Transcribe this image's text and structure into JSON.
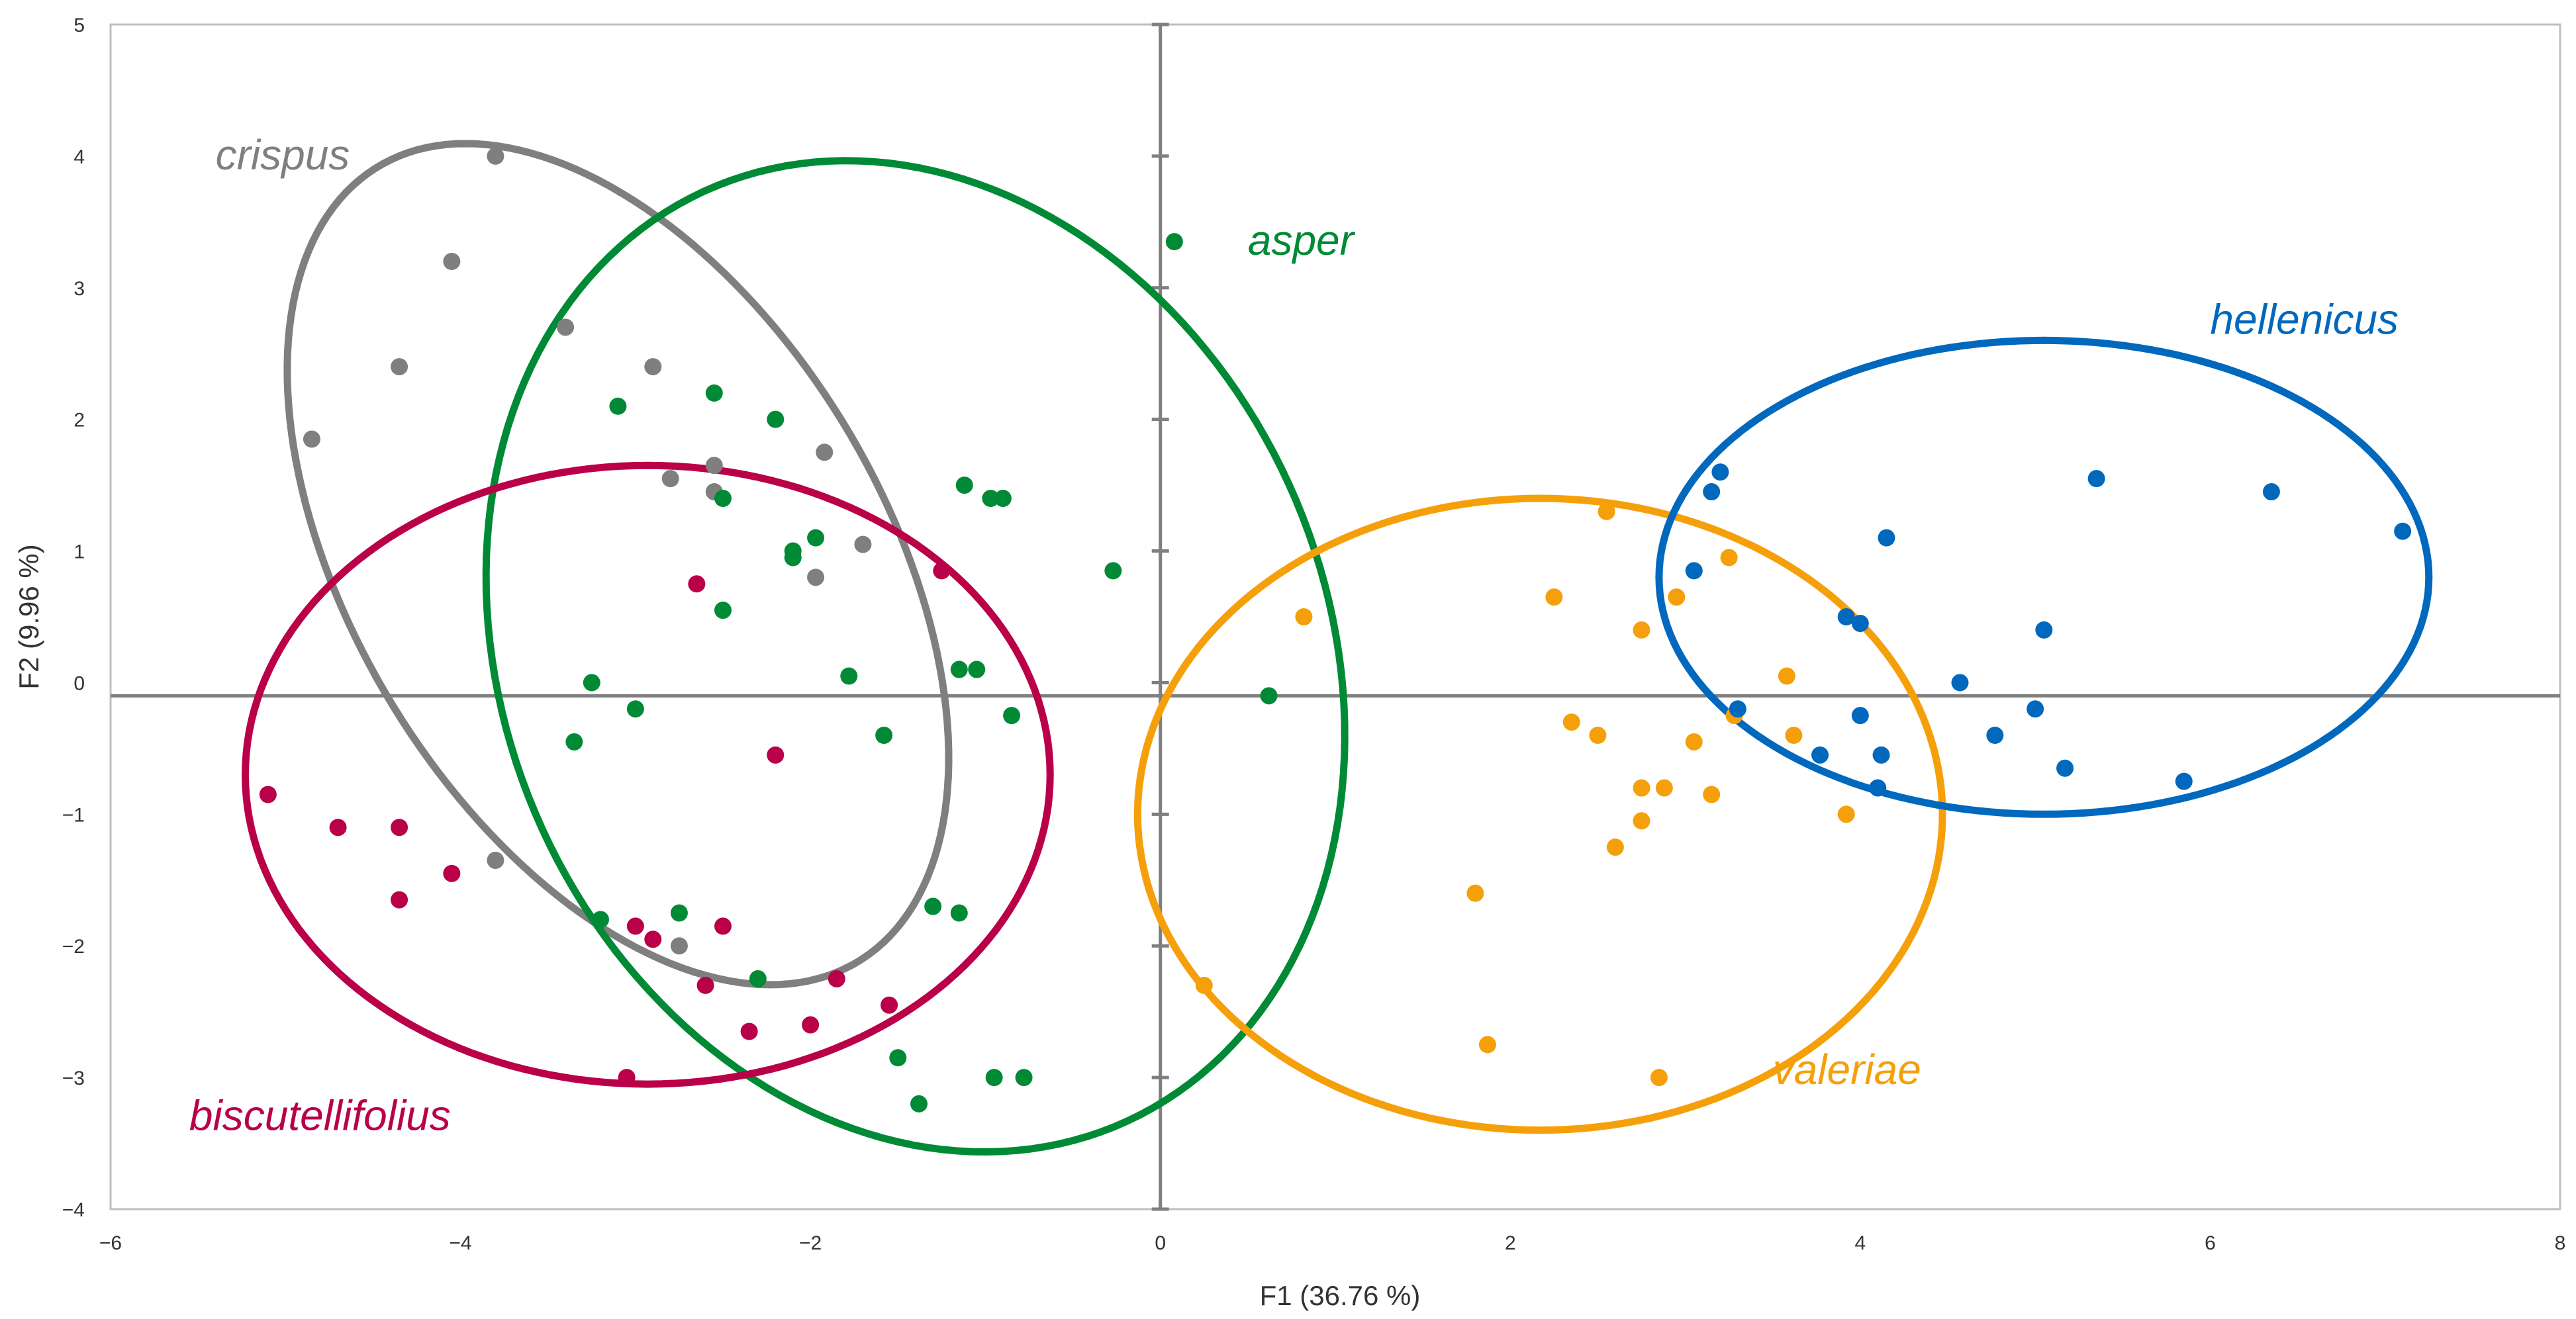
{
  "chart_data": {
    "type": "scatter",
    "title": "",
    "xlabel": "F1 (36.76 %)",
    "ylabel": "F2 (9.96 %)",
    "xlim": [
      -6,
      8
    ],
    "ylim": [
      -4,
      5
    ],
    "x_ticks": [
      -6,
      -4,
      -2,
      0,
      2,
      4,
      6,
      8
    ],
    "y_ticks": [
      -4,
      -3,
      -2,
      -1,
      0,
      1,
      2,
      3,
      4,
      5
    ],
    "x_tick_labels": [
      "−6",
      "−4",
      "−2",
      "0",
      "2",
      "4",
      "6",
      "8"
    ],
    "y_tick_labels": [
      "−4",
      "−3",
      "−2",
      "−1",
      "0",
      "1",
      "2",
      "3",
      "4",
      "5"
    ],
    "reference_lines": {
      "horizontal_y": -0.1,
      "vertical_x": 0
    },
    "series": [
      {
        "name": "crispus",
        "color": "#7f7f7f",
        "label_at": [
          -5.4,
          3.9
        ],
        "ellipse": {
          "cx": -3.1,
          "cy": 0.9,
          "rx": 3.35,
          "ry": 1.6,
          "angle_deg": 110
        },
        "points": [
          [
            -3.8,
            4.0
          ],
          [
            -4.05,
            3.2
          ],
          [
            -3.4,
            2.7
          ],
          [
            -4.35,
            2.4
          ],
          [
            -4.85,
            1.85
          ],
          [
            -2.9,
            2.4
          ],
          [
            -1.92,
            1.75
          ],
          [
            -2.8,
            1.55
          ],
          [
            -2.55,
            1.65
          ],
          [
            -2.55,
            1.45
          ],
          [
            -1.7,
            1.05
          ],
          [
            -1.97,
            0.8
          ],
          [
            -3.8,
            -1.35
          ],
          [
            -2.75,
            -2.0
          ]
        ]
      },
      {
        "name": "asper",
        "color": "#008a36",
        "label_at": [
          0.5,
          3.25
        ],
        "ellipse": {
          "cx": -1.4,
          "cy": 0.2,
          "rx": 3.8,
          "ry": 2.4,
          "angle_deg": -80
        },
        "points": [
          [
            0.08,
            3.35
          ],
          [
            -3.1,
            2.1
          ],
          [
            -2.55,
            2.2
          ],
          [
            -2.2,
            2.0
          ],
          [
            -2.5,
            1.4
          ],
          [
            -1.12,
            1.5
          ],
          [
            -0.97,
            1.4
          ],
          [
            -0.9,
            1.4
          ],
          [
            -1.97,
            1.1
          ],
          [
            -2.1,
            1.0
          ],
          [
            -2.1,
            0.95
          ],
          [
            -2.5,
            0.55
          ],
          [
            -0.27,
            0.85
          ],
          [
            -3.25,
            0.0
          ],
          [
            -1.78,
            0.05
          ],
          [
            -1.15,
            0.1
          ],
          [
            -1.05,
            0.1
          ],
          [
            -3.0,
            -0.2
          ],
          [
            -3.35,
            -0.45
          ],
          [
            -1.58,
            -0.4
          ],
          [
            -0.85,
            -0.25
          ],
          [
            0.62,
            -0.1
          ],
          [
            -3.2,
            -1.8
          ],
          [
            -2.75,
            -1.75
          ],
          [
            -1.3,
            -1.7
          ],
          [
            -1.15,
            -1.75
          ],
          [
            -2.3,
            -2.25
          ],
          [
            -1.5,
            -2.85
          ],
          [
            -0.95,
            -3.0
          ],
          [
            -0.78,
            -3.0
          ],
          [
            -1.38,
            -3.2
          ]
        ]
      },
      {
        "name": "biscutellifolius",
        "color": "#b90048",
        "label_at": [
          -5.55,
          -3.4
        ],
        "ellipse": {
          "cx": -2.93,
          "cy": -0.7,
          "rx": 2.3,
          "ry": 2.35,
          "angle_deg": 0
        },
        "points": [
          [
            -5.1,
            -0.85
          ],
          [
            -4.7,
            -1.1
          ],
          [
            -4.35,
            -1.1
          ],
          [
            -4.35,
            -1.65
          ],
          [
            -4.05,
            -1.45
          ],
          [
            -2.65,
            0.75
          ],
          [
            -1.25,
            0.85
          ],
          [
            -2.2,
            -0.55
          ],
          [
            -3.0,
            -1.85
          ],
          [
            -2.9,
            -1.95
          ],
          [
            -2.5,
            -1.85
          ],
          [
            -2.6,
            -2.3
          ],
          [
            -2.35,
            -2.65
          ],
          [
            -2.0,
            -2.6
          ],
          [
            -1.85,
            -2.25
          ],
          [
            -1.55,
            -2.45
          ],
          [
            -3.05,
            -3.0
          ]
        ]
      },
      {
        "name": "valeriae",
        "color": "#f5a00a",
        "label_at": [
          3.5,
          -3.05
        ],
        "ellipse": {
          "cx": 2.17,
          "cy": -1.0,
          "rx": 2.3,
          "ry": 2.4,
          "angle_deg": 0
        },
        "points": [
          [
            0.82,
            0.5
          ],
          [
            2.55,
            1.3
          ],
          [
            2.25,
            0.65
          ],
          [
            2.95,
            0.65
          ],
          [
            3.25,
            0.95
          ],
          [
            2.75,
            0.4
          ],
          [
            3.58,
            0.05
          ],
          [
            2.35,
            -0.3
          ],
          [
            2.5,
            -0.4
          ],
          [
            3.05,
            -0.45
          ],
          [
            3.62,
            -0.4
          ],
          [
            3.28,
            -0.25
          ],
          [
            2.75,
            -0.8
          ],
          [
            2.88,
            -0.8
          ],
          [
            3.15,
            -0.85
          ],
          [
            2.75,
            -1.05
          ],
          [
            2.6,
            -1.25
          ],
          [
            3.92,
            -1.0
          ],
          [
            1.8,
            -1.6
          ],
          [
            0.25,
            -2.3
          ],
          [
            1.87,
            -2.75
          ],
          [
            2.85,
            -3.0
          ]
        ]
      },
      {
        "name": "hellenicus",
        "color": "#0068bd",
        "label_at": [
          6.0,
          2.65
        ],
        "ellipse": {
          "cx": 5.05,
          "cy": 0.8,
          "rx": 2.2,
          "ry": 1.8,
          "angle_deg": 0
        },
        "points": [
          [
            3.15,
            1.45
          ],
          [
            3.2,
            1.6
          ],
          [
            5.35,
            1.55
          ],
          [
            6.35,
            1.45
          ],
          [
            7.1,
            1.15
          ],
          [
            4.15,
            1.1
          ],
          [
            3.05,
            0.85
          ],
          [
            3.92,
            0.5
          ],
          [
            4.0,
            0.45
          ],
          [
            5.05,
            0.4
          ],
          [
            4.57,
            0.0
          ],
          [
            3.3,
            -0.2
          ],
          [
            4.0,
            -0.25
          ],
          [
            5.0,
            -0.2
          ],
          [
            3.77,
            -0.55
          ],
          [
            4.12,
            -0.55
          ],
          [
            4.77,
            -0.4
          ],
          [
            5.17,
            -0.65
          ],
          [
            4.1,
            -0.8
          ],
          [
            5.85,
            -0.75
          ]
        ]
      }
    ]
  }
}
